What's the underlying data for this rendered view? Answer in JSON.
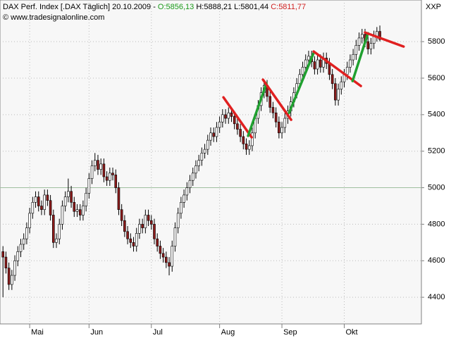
{
  "chart_data": {
    "type": "candlestick",
    "header": {
      "title": "DAX Perf. Index [.DAX Täglich] 20.10.2009 -",
      "open_label": "O:5856,13",
      "high_low_label": "H:5888,21 L:5801,44",
      "close_label": "C:5811,77",
      "source": "© www.tradesignalonline.com",
      "axis_unit": "XXP"
    },
    "xlim": [
      -1,
      141
    ],
    "xticks": [
      {
        "value": 9,
        "label": "Mai"
      },
      {
        "value": 29,
        "label": "Jun"
      },
      {
        "value": 50,
        "label": "Jul"
      },
      {
        "value": 73,
        "label": "Aug"
      },
      {
        "value": 94,
        "label": "Sep"
      },
      {
        "value": 115,
        "label": "Okt"
      }
    ],
    "ylim": [
      4254,
      6028
    ],
    "yticks": [
      4400,
      4600,
      4800,
      5000,
      5200,
      5400,
      5600,
      5800
    ],
    "grid": true,
    "reference_line": 5000,
    "up_color": "#ffffff",
    "down_color": "#8b1a1a",
    "candles": {
      "open": [
        4650,
        4620,
        4560,
        4470,
        4520,
        4600,
        4650,
        4690,
        4720,
        4780,
        4860,
        4920,
        4950,
        4900,
        4880,
        4960,
        4930,
        4850,
        4700,
        4720,
        4800,
        4900,
        4950,
        4980,
        4920,
        4870,
        4880,
        4850,
        4900,
        4970,
        5050,
        5120,
        5150,
        5100,
        5130,
        5060,
        5040,
        5080,
        5070,
        5000,
        4880,
        4820,
        4760,
        4720,
        4700,
        4680,
        4750,
        4800,
        4780,
        4850,
        4820,
        4800,
        4720,
        4680,
        4640,
        4620,
        4590,
        4570,
        4680,
        4780,
        4860,
        4920,
        4960,
        5000,
        5040,
        5080,
        5120,
        5150,
        5190,
        5210,
        5260,
        5300,
        5280,
        5330,
        5360,
        5400,
        5380,
        5410,
        5390,
        5350,
        5320,
        5280,
        5240,
        5210,
        5230,
        5300,
        5380,
        5450,
        5520,
        5560,
        5500,
        5440,
        5410,
        5360,
        5300,
        5330,
        5380,
        5420,
        5470,
        5520,
        5570,
        5620,
        5660,
        5700,
        5720,
        5690,
        5650,
        5700,
        5660,
        5710,
        5680,
        5620,
        5570,
        5480,
        5540,
        5580,
        5620,
        5660,
        5700,
        5730,
        5780,
        5820,
        5840,
        5800,
        5760,
        5790,
        5830,
        5856.13
      ],
      "high": [
        4680,
        4650,
        4590,
        4550,
        4630,
        4680,
        4720,
        4750,
        4810,
        4890,
        4950,
        4980,
        4980,
        4930,
        4990,
        4990,
        4960,
        4880,
        4750,
        4830,
        4930,
        4980,
        5050,
        5010,
        4950,
        4910,
        4910,
        4930,
        5000,
        5080,
        5150,
        5190,
        5180,
        5160,
        5160,
        5090,
        5110,
        5110,
        5100,
        5030,
        4910,
        4850,
        4790,
        4750,
        4730,
        4780,
        4830,
        4830,
        4880,
        4880,
        4850,
        4830,
        4750,
        4710,
        4670,
        4650,
        4620,
        4710,
        4810,
        4890,
        4950,
        4990,
        5030,
        5070,
        5110,
        5150,
        5180,
        5220,
        5240,
        5290,
        5330,
        5330,
        5360,
        5390,
        5430,
        5430,
        5440,
        5440,
        5420,
        5380,
        5350,
        5310,
        5270,
        5260,
        5330,
        5410,
        5480,
        5550,
        5590,
        5590,
        5530,
        5470,
        5440,
        5390,
        5360,
        5410,
        5450,
        5500,
        5550,
        5600,
        5650,
        5690,
        5730,
        5750,
        5750,
        5720,
        5730,
        5730,
        5740,
        5740,
        5710,
        5650,
        5600,
        5570,
        5610,
        5650,
        5690,
        5730,
        5760,
        5810,
        5850,
        5870,
        5870,
        5830,
        5820,
        5860,
        5880,
        5888.21
      ],
      "low": [
        4400,
        4530,
        4440,
        4440,
        4490,
        4570,
        4620,
        4660,
        4690,
        4750,
        4830,
        4890,
        4870,
        4850,
        4850,
        4900,
        4820,
        4670,
        4670,
        4690,
        4770,
        4870,
        4920,
        4890,
        4840,
        4840,
        4820,
        4820,
        4870,
        4940,
        5020,
        5090,
        5070,
        5070,
        5030,
        5010,
        5010,
        5040,
        4970,
        4850,
        4790,
        4730,
        4690,
        4670,
        4650,
        4650,
        4720,
        4750,
        4750,
        4790,
        4770,
        4690,
        4650,
        4610,
        4590,
        4560,
        4520,
        4540,
        4650,
        4750,
        4830,
        4890,
        4930,
        4970,
        5010,
        5050,
        5090,
        5120,
        5160,
        5180,
        5230,
        5250,
        5250,
        5300,
        5330,
        5350,
        5350,
        5360,
        5320,
        5290,
        5250,
        5210,
        5180,
        5180,
        5200,
        5270,
        5350,
        5420,
        5490,
        5470,
        5410,
        5380,
        5330,
        5270,
        5270,
        5300,
        5350,
        5390,
        5440,
        5490,
        5540,
        5590,
        5630,
        5670,
        5660,
        5620,
        5620,
        5630,
        5630,
        5650,
        5590,
        5540,
        5450,
        5450,
        5510,
        5550,
        5590,
        5630,
        5670,
        5700,
        5750,
        5790,
        5770,
        5730,
        5730,
        5760,
        5800,
        5801.44
      ],
      "close": [
        4620,
        4560,
        4470,
        4520,
        4600,
        4650,
        4690,
        4720,
        4780,
        4860,
        4920,
        4950,
        4900,
        4880,
        4960,
        4930,
        4850,
        4700,
        4720,
        4800,
        4900,
        4950,
        4980,
        4920,
        4870,
        4880,
        4850,
        4900,
        4970,
        5050,
        5120,
        5150,
        5100,
        5130,
        5060,
        5040,
        5080,
        5070,
        5000,
        4880,
        4820,
        4760,
        4720,
        4700,
        4680,
        4750,
        4800,
        4780,
        4850,
        4820,
        4800,
        4720,
        4680,
        4640,
        4620,
        4590,
        4570,
        4680,
        4780,
        4860,
        4920,
        4960,
        5000,
        5040,
        5080,
        5120,
        5150,
        5190,
        5210,
        5260,
        5300,
        5280,
        5330,
        5360,
        5400,
        5380,
        5410,
        5390,
        5350,
        5320,
        5280,
        5240,
        5210,
        5230,
        5300,
        5380,
        5450,
        5520,
        5560,
        5500,
        5440,
        5410,
        5360,
        5300,
        5330,
        5380,
        5420,
        5470,
        5520,
        5570,
        5620,
        5660,
        5700,
        5720,
        5690,
        5650,
        5700,
        5660,
        5710,
        5680,
        5620,
        5570,
        5480,
        5540,
        5580,
        5620,
        5660,
        5700,
        5730,
        5780,
        5820,
        5840,
        5800,
        5760,
        5790,
        5830,
        5856,
        5811.77
      ]
    },
    "trendlines": [
      {
        "color": "#e02020",
        "from": [
          74.3,
          5495
        ],
        "to": [
          83.8,
          5276
        ]
      },
      {
        "color": "#20a030",
        "from": [
          82.6,
          5284
        ],
        "to": [
          88.8,
          5572
        ]
      },
      {
        "color": "#e02020",
        "from": [
          87.6,
          5592
        ],
        "to": [
          97.1,
          5372
        ]
      },
      {
        "color": "#20a030",
        "from": [
          96.4,
          5410
        ],
        "to": [
          104.7,
          5738
        ]
      },
      {
        "color": "#e02020",
        "from": [
          104.7,
          5746
        ],
        "to": [
          120.6,
          5557
        ]
      },
      {
        "color": "#20a030",
        "from": [
          117.8,
          5584
        ],
        "to": [
          123,
          5846
        ]
      },
      {
        "color": "#e02020",
        "from": [
          122,
          5850
        ],
        "to": [
          135,
          5773
        ]
      }
    ]
  }
}
